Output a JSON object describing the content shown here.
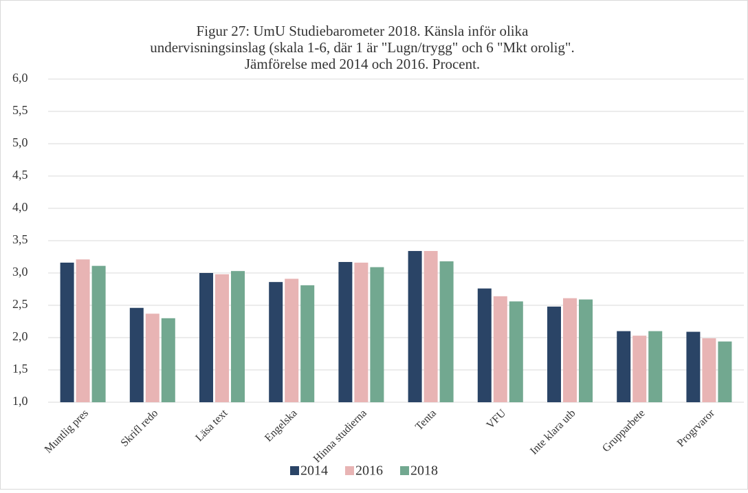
{
  "chart_data": {
    "type": "bar",
    "title": [
      "Figur 27: UmU Studiebarometer 2018. Känsla inför olika",
      "undervisningsinslag (skala 1-6, där 1 är \"Lugn/trygg\" och 6 \"Mkt orolig\".",
      "Jämförelse med 2014 och 2016. Procent."
    ],
    "categories": [
      "Muntlig pres",
      "Skrifl redo",
      "Läsa text",
      "Engelska",
      "Hinna studierna",
      "Tenta",
      "VFU",
      "Inte klara utb",
      "Grupparbete",
      "Progrvaror"
    ],
    "series": [
      {
        "name": "2014",
        "color": "#2a4466",
        "values": [
          3.16,
          2.46,
          3.0,
          2.86,
          3.17,
          3.34,
          2.76,
          2.48,
          2.1,
          2.09
        ]
      },
      {
        "name": "2016",
        "color": "#e8b4b4",
        "values": [
          3.21,
          2.37,
          2.98,
          2.91,
          3.16,
          3.34,
          2.64,
          2.61,
          2.03,
          1.99
        ]
      },
      {
        "name": "2018",
        "color": "#72a890",
        "values": [
          3.11,
          2.3,
          3.03,
          2.81,
          3.09,
          3.18,
          2.56,
          2.59,
          2.1,
          1.94
        ]
      }
    ],
    "ylim": [
      1,
      6
    ],
    "yticks": [
      {
        "value": 1,
        "label": "1,0"
      },
      {
        "value": 1.5,
        "label": "1,5"
      },
      {
        "value": 2,
        "label": "2,0"
      },
      {
        "value": 2.5,
        "label": "2,5"
      },
      {
        "value": 3,
        "label": "3,0"
      },
      {
        "value": 3.5,
        "label": "3,5"
      },
      {
        "value": 4,
        "label": "4,0"
      },
      {
        "value": 4.5,
        "label": "4,5"
      },
      {
        "value": 5,
        "label": "5,0"
      },
      {
        "value": 5.5,
        "label": "5,5"
      },
      {
        "value": 6,
        "label": "6,0"
      }
    ],
    "grid": true,
    "legend": "bottom"
  }
}
